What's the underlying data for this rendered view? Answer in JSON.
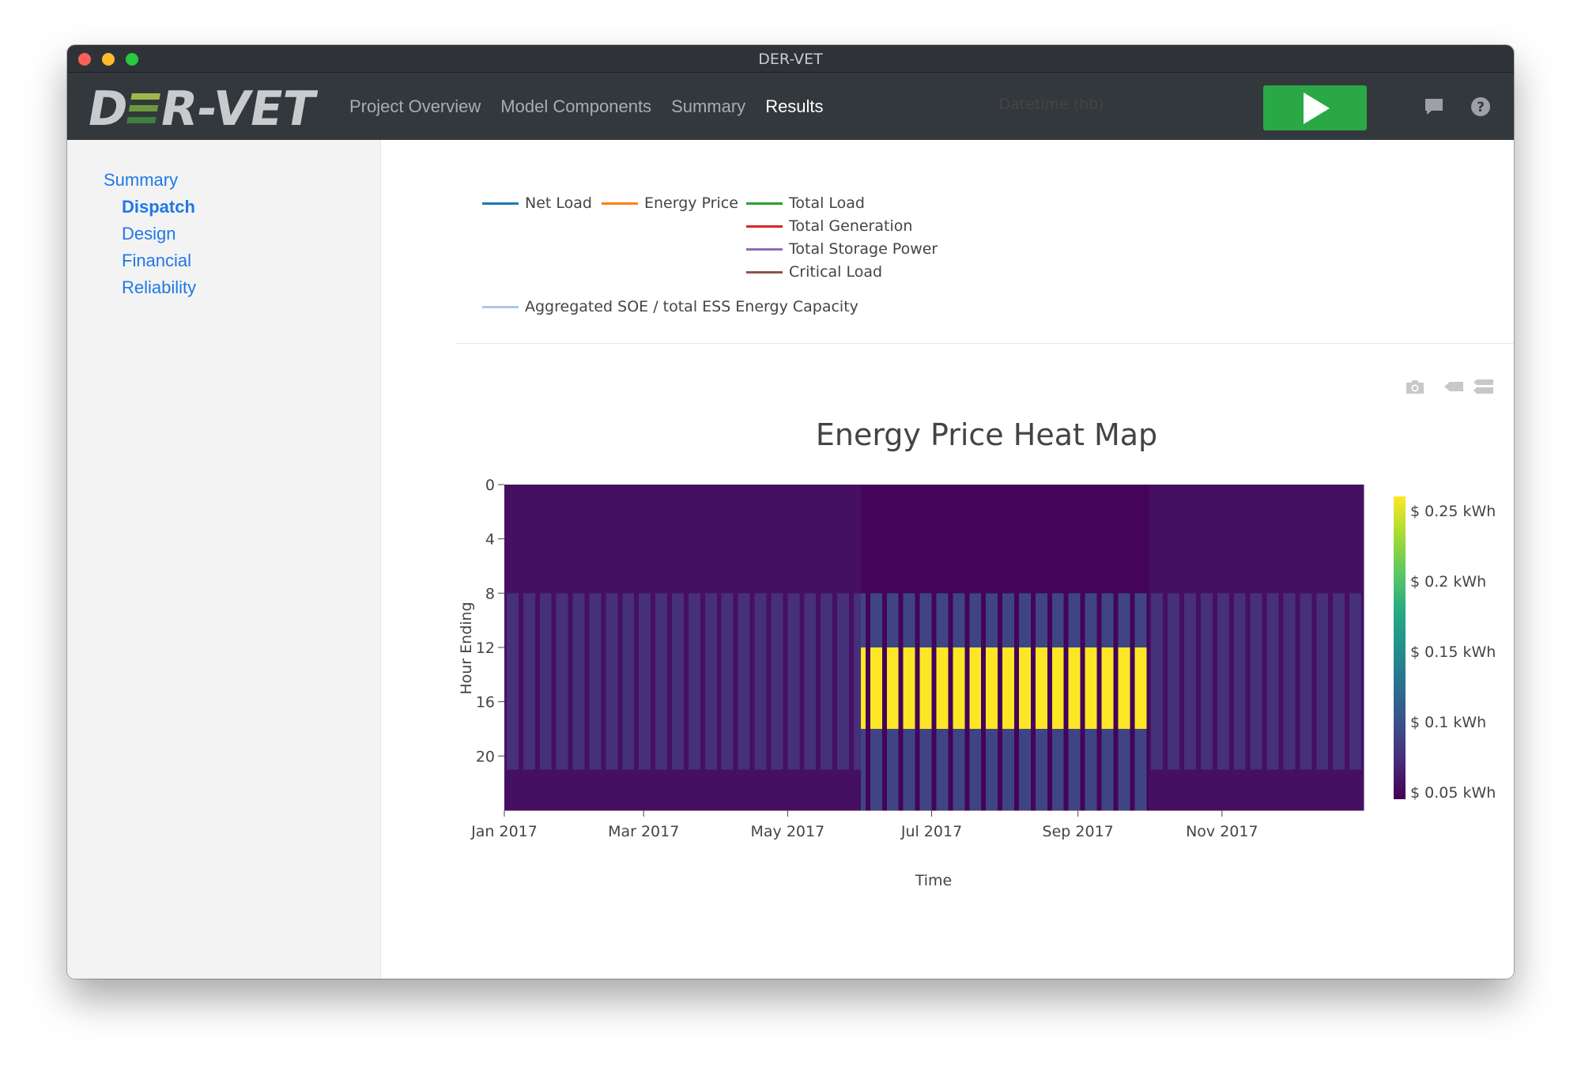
{
  "window": {
    "title": "DER-VET"
  },
  "navbar": {
    "logo_text": "DER-VET",
    "links": [
      {
        "label": "Project Overview",
        "active": false
      },
      {
        "label": "Model Components",
        "active": false
      },
      {
        "label": "Summary",
        "active": false
      },
      {
        "label": "Results",
        "active": true
      }
    ],
    "run_button_icon": "play-icon",
    "icons": [
      "chat-icon",
      "help-icon"
    ]
  },
  "sidebar": {
    "summary_label": "Summary",
    "items": [
      {
        "label": "Dispatch",
        "active": true
      },
      {
        "label": "Design",
        "active": false
      },
      {
        "label": "Financial",
        "active": false
      },
      {
        "label": "Reliability",
        "active": false
      }
    ]
  },
  "upper_chart": {
    "x_axis_title": "Datetime (hb)",
    "legend": [
      {
        "name": "Net Load",
        "color": "#1f77b4"
      },
      {
        "name": "Energy Price",
        "color": "#ff7f0e"
      },
      {
        "name": "Total Load",
        "color": "#2ca02c"
      },
      {
        "name": "Total Generation",
        "color": "#d62728"
      },
      {
        "name": "Total Storage Power",
        "color": "#9467bd"
      },
      {
        "name": "Critical Load",
        "color": "#8c564b"
      },
      {
        "name": "Aggregated SOE / total ESS Energy Capacity",
        "color": "#aec7e8"
      }
    ]
  },
  "chart_data": {
    "type": "heatmap",
    "title": "Energy Price Heat Map",
    "xlabel": "Time",
    "ylabel": "Hour Ending",
    "x_range": [
      "2017-01-01",
      "2017-12-31"
    ],
    "x_ticks": [
      "Jan 2017",
      "Mar 2017",
      "May 2017",
      "Jul 2017",
      "Sep 2017",
      "Nov 2017"
    ],
    "y_ticks": [
      "0",
      "4",
      "8",
      "12",
      "16",
      "20"
    ],
    "y_range": [
      0,
      24
    ],
    "colorscale": "Viridis",
    "colorbar_ticks": [
      "$ 0.05 kWh",
      "$ 0.1 kWh",
      "$ 0.15 kWh",
      "$ 0.2 kWh",
      "$ 0.25 kWh"
    ],
    "color_range": [
      0.045,
      0.26
    ],
    "seasons": [
      {
        "name": "winter",
        "start": "2017-01-01",
        "end": "2017-06-01"
      },
      {
        "name": "summer",
        "start": "2017-06-01",
        "end": "2017-10-01"
      },
      {
        "name": "winter",
        "start": "2017-10-01",
        "end": "2017-12-31"
      }
    ],
    "price_blocks": {
      "winter": {
        "weekday": [
          {
            "hours": [
              0,
              8
            ],
            "value": 0.055
          },
          {
            "hours": [
              8,
              21
            ],
            "value": 0.075
          },
          {
            "hours": [
              21,
              24
            ],
            "value": 0.055
          }
        ],
        "weekend": [
          {
            "hours": [
              0,
              24
            ],
            "value": 0.055
          }
        ]
      },
      "summer": {
        "weekday": [
          {
            "hours": [
              0,
              8
            ],
            "value": 0.047
          },
          {
            "hours": [
              8,
              12
            ],
            "value": 0.09
          },
          {
            "hours": [
              12,
              18
            ],
            "value": 0.26
          },
          {
            "hours": [
              18,
              24
            ],
            "value": 0.09
          }
        ],
        "weekend": [
          {
            "hours": [
              0,
              24
            ],
            "value": 0.047
          }
        ]
      }
    },
    "modebar_icons": [
      "camera-icon",
      "tag-icon",
      "compare-icon"
    ]
  }
}
